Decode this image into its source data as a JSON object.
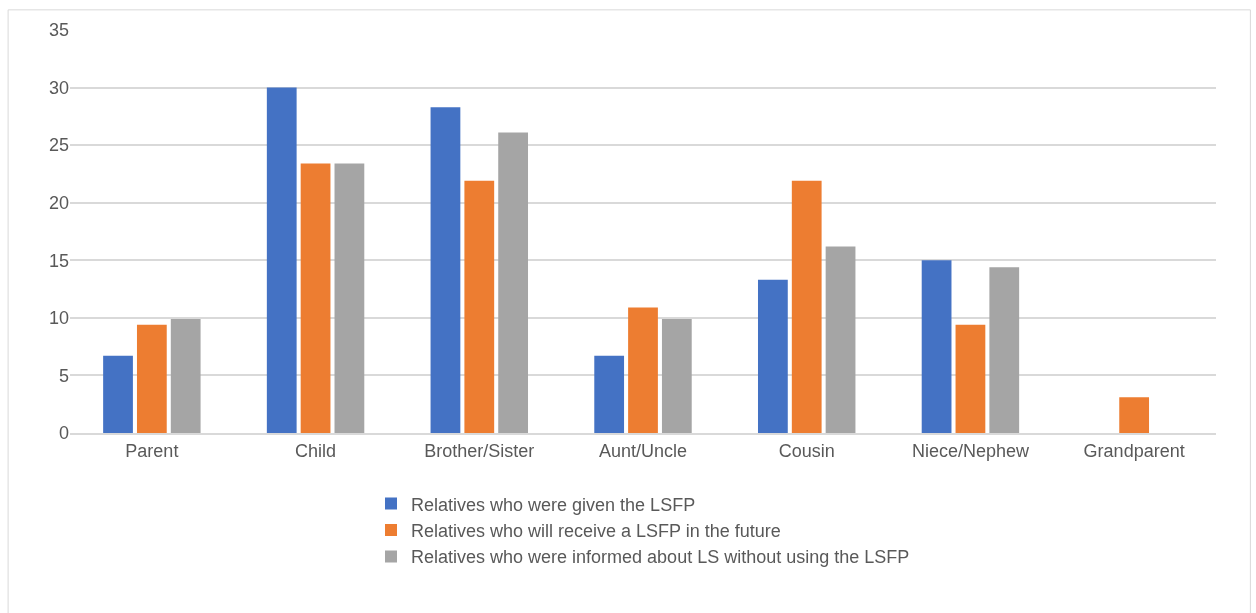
{
  "chart_data": {
    "type": "bar",
    "categories": [
      "Parent",
      "Child",
      "Brother/Sister",
      "Aunt/Uncle",
      "Cousin",
      "Niece/Nephew",
      "Grandparent"
    ],
    "series": [
      {
        "name": "Relatives who were given the LSFP",
        "color": "#4472c4",
        "values": [
          6.7,
          30,
          28.3,
          6.7,
          13.3,
          15,
          null
        ]
      },
      {
        "name": "Relatives who will receive a LSFP in the future",
        "color": "#ed7d31",
        "values": [
          9.4,
          23.4,
          21.9,
          10.9,
          21.9,
          9.4,
          3.1
        ]
      },
      {
        "name": "Relatives who were informed about LS without using the LSFP",
        "color": "#a5a5a5",
        "values": [
          9.9,
          23.4,
          26.1,
          9.9,
          16.2,
          14.4,
          null
        ]
      }
    ],
    "ylim": [
      0,
      35
    ],
    "yticks": [
      0,
      5,
      10,
      15,
      20,
      25,
      30,
      35
    ],
    "grid": "y",
    "legend": "bottom"
  }
}
